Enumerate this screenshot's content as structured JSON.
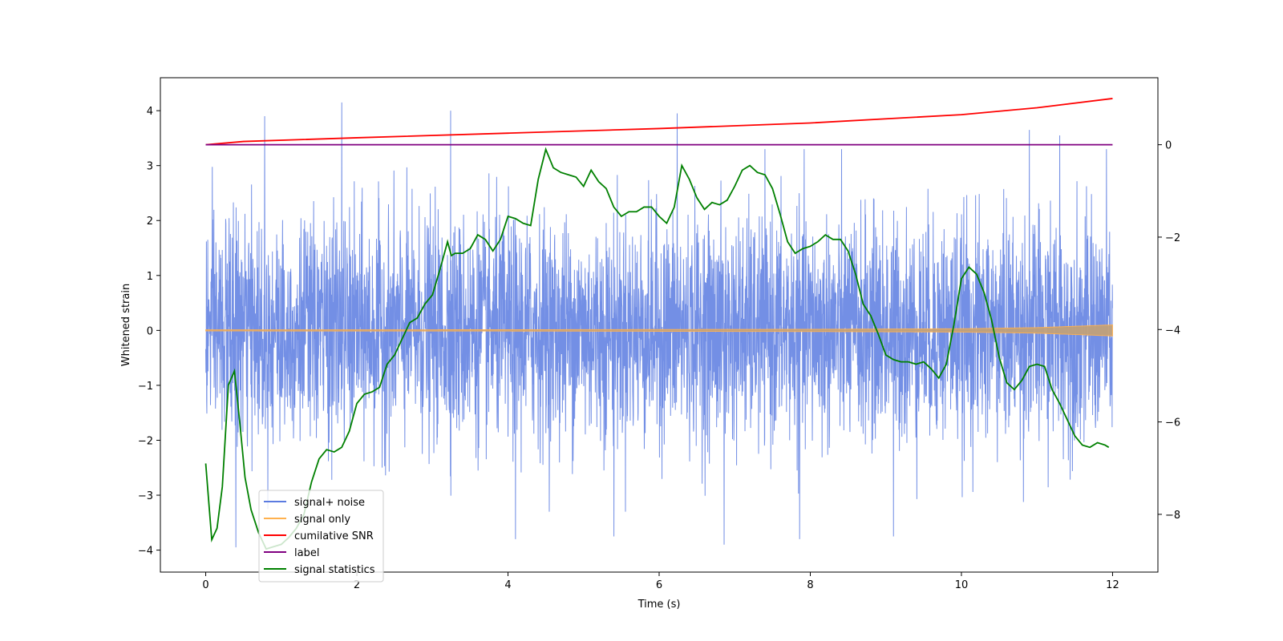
{
  "chart_data": {
    "type": "line",
    "title": "",
    "xlabel": "Time (s)",
    "ylabel": "Whitened strain",
    "y2label": "",
    "xlim": [
      -0.6,
      12.6
    ],
    "ylim": [
      -4.4,
      4.6
    ],
    "y2lim": [
      -9.25,
      1.45
    ],
    "x_ticks": [
      0,
      2,
      4,
      6,
      8,
      10,
      12
    ],
    "y_ticks": [
      -4,
      -3,
      -2,
      -1,
      0,
      1,
      2,
      3,
      4
    ],
    "y2_ticks": [
      -8,
      -6,
      -4,
      -2,
      0
    ],
    "grid": false,
    "legend_position": "lower-left",
    "colors": {
      "noise": "#5b7be0",
      "signal": "#ffb14e",
      "snr": "#ff0000",
      "label": "#800080",
      "stats": "#008000"
    },
    "series": [
      {
        "name": "signal+ noise",
        "axis": "left",
        "description_of_values": "dense noisy trace, roughly N(0,1), spanning t=0..12",
        "x_range": [
          0,
          12
        ],
        "peaks": [
          {
            "x": 0.78,
            "y": 3.9
          },
          {
            "x": 1.8,
            "y": 4.15
          },
          {
            "x": 3.24,
            "y": 4.0
          },
          {
            "x": 6.24,
            "y": 3.95
          },
          {
            "x": 10.9,
            "y": 3.65
          },
          {
            "x": 11.3,
            "y": 3.55
          },
          {
            "x": 0.4,
            "y": -3.95
          },
          {
            "x": 4.1,
            "y": -3.8
          },
          {
            "x": 5.4,
            "y": -3.75
          },
          {
            "x": 6.86,
            "y": -3.9
          },
          {
            "x": 7.86,
            "y": -3.8
          },
          {
            "x": 9.1,
            "y": -3.75
          }
        ]
      },
      {
        "name": "signal only",
        "axis": "left",
        "x": [
          0,
          4,
          8,
          10,
          11,
          12
        ],
        "amplitude": [
          0.01,
          0.012,
          0.02,
          0.03,
          0.05,
          0.1
        ]
      },
      {
        "name": "cumilative SNR",
        "axis": "right",
        "x": [
          0,
          0.5,
          2,
          4,
          6,
          8,
          10,
          11,
          12
        ],
        "y": [
          0.0,
          0.07,
          0.15,
          0.25,
          0.35,
          0.47,
          0.65,
          0.8,
          1.0
        ]
      },
      {
        "name": "label",
        "axis": "right",
        "x": [
          0,
          12
        ],
        "y": [
          0,
          0
        ]
      },
      {
        "name": "signal statistics",
        "axis": "right",
        "x": [
          0.0,
          0.08,
          0.15,
          0.22,
          0.3,
          0.38,
          0.45,
          0.52,
          0.6,
          0.7,
          0.8,
          0.9,
          1.0,
          1.1,
          1.2,
          1.3,
          1.4,
          1.5,
          1.6,
          1.7,
          1.8,
          1.9,
          2.0,
          2.1,
          2.2,
          2.3,
          2.4,
          2.5,
          2.6,
          2.7,
          2.8,
          2.9,
          3.0,
          3.1,
          3.2,
          3.25,
          3.3,
          3.4,
          3.5,
          3.6,
          3.7,
          3.8,
          3.9,
          4.0,
          4.1,
          4.2,
          4.3,
          4.4,
          4.5,
          4.6,
          4.7,
          4.8,
          4.9,
          5.0,
          5.1,
          5.2,
          5.3,
          5.4,
          5.5,
          5.6,
          5.7,
          5.8,
          5.9,
          6.0,
          6.1,
          6.2,
          6.3,
          6.4,
          6.5,
          6.6,
          6.7,
          6.8,
          6.9,
          7.0,
          7.1,
          7.2,
          7.3,
          7.4,
          7.5,
          7.6,
          7.7,
          7.8,
          7.9,
          8.0,
          8.1,
          8.2,
          8.3,
          8.4,
          8.5,
          8.6,
          8.7,
          8.8,
          8.9,
          9.0,
          9.1,
          9.2,
          9.3,
          9.4,
          9.5,
          9.6,
          9.7,
          9.8,
          9.9,
          10.0,
          10.1,
          10.2,
          10.3,
          10.4,
          10.5,
          10.6,
          10.7,
          10.8,
          10.9,
          11.0,
          11.1,
          11.2,
          11.3,
          11.4,
          11.5,
          11.6,
          11.7,
          11.8,
          11.9,
          11.95
        ],
        "y": [
          -6.9,
          -8.55,
          -8.3,
          -7.4,
          -5.2,
          -4.9,
          -6.0,
          -7.2,
          -7.9,
          -8.4,
          -8.75,
          -8.7,
          -8.65,
          -8.5,
          -8.3,
          -8.0,
          -7.3,
          -6.8,
          -6.6,
          -6.65,
          -6.55,
          -6.2,
          -5.6,
          -5.4,
          -5.35,
          -5.25,
          -4.75,
          -4.55,
          -4.2,
          -3.85,
          -3.75,
          -3.45,
          -3.25,
          -2.7,
          -2.1,
          -2.4,
          -2.35,
          -2.35,
          -2.25,
          -1.95,
          -2.05,
          -2.3,
          -2.05,
          -1.55,
          -1.6,
          -1.7,
          -1.75,
          -0.75,
          -0.1,
          -0.5,
          -0.6,
          -0.65,
          -0.7,
          -0.9,
          -0.55,
          -0.8,
          -0.95,
          -1.35,
          -1.55,
          -1.45,
          -1.45,
          -1.35,
          -1.35,
          -1.55,
          -1.7,
          -1.35,
          -0.45,
          -0.75,
          -1.15,
          -1.4,
          -1.25,
          -1.3,
          -1.2,
          -0.9,
          -0.55,
          -0.45,
          -0.6,
          -0.65,
          -0.95,
          -1.5,
          -2.1,
          -2.35,
          -2.25,
          -2.2,
          -2.1,
          -1.95,
          -2.05,
          -2.05,
          -2.3,
          -2.8,
          -3.45,
          -3.7,
          -4.1,
          -4.55,
          -4.65,
          -4.7,
          -4.7,
          -4.75,
          -4.7,
          -4.85,
          -5.05,
          -4.75,
          -3.9,
          -2.9,
          -2.65,
          -2.8,
          -3.2,
          -3.8,
          -4.6,
          -5.15,
          -5.3,
          -5.1,
          -4.8,
          -4.75,
          -4.8,
          -5.3,
          -5.6,
          -5.95,
          -6.3,
          -6.5,
          -6.55,
          -6.45,
          -6.5,
          -6.55
        ]
      }
    ]
  }
}
